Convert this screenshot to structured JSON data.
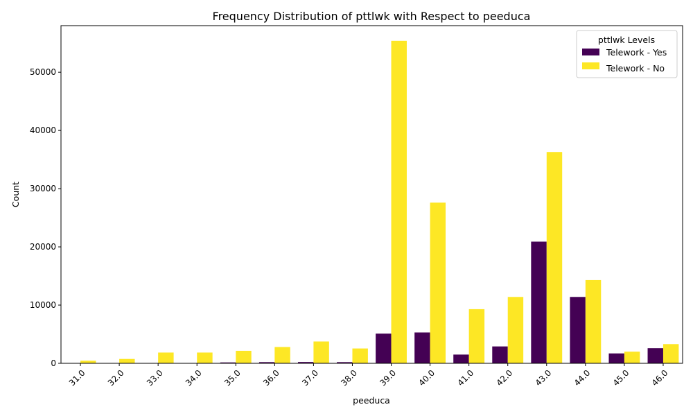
{
  "chart_data": {
    "type": "bar",
    "title": "Frequency Distribution of pttlwk with Respect to peeduca",
    "xlabel": "peeduca",
    "ylabel": "Count",
    "categories": [
      "31.0",
      "32.0",
      "33.0",
      "34.0",
      "35.0",
      "36.0",
      "37.0",
      "38.0",
      "39.0",
      "40.0",
      "41.0",
      "42.0",
      "43.0",
      "44.0",
      "45.0",
      "46.0"
    ],
    "series": [
      {
        "name": "Telework - Yes",
        "color": "#440154",
        "values": [
          5,
          5,
          20,
          25,
          150,
          200,
          220,
          200,
          5100,
          5300,
          1500,
          2900,
          20900,
          11400,
          1700,
          2600
        ]
      },
      {
        "name": "Telework - No",
        "color": "#fde725",
        "values": [
          450,
          750,
          1850,
          1850,
          2150,
          2800,
          3750,
          2550,
          55400,
          27600,
          9300,
          11400,
          36300,
          14300,
          2000,
          3300
        ]
      }
    ],
    "ylim": [
      0,
      58000
    ],
    "yticks": [
      0,
      10000,
      20000,
      30000,
      40000,
      50000
    ],
    "legend": {
      "title": "pttlwk Levels",
      "placement": "top-right"
    },
    "grid": false,
    "x_tick_rotation": 45
  }
}
